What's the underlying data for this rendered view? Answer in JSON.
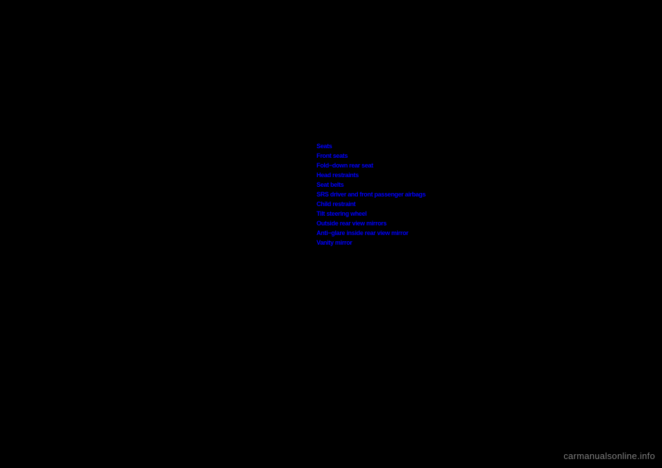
{
  "links": [
    "Seats",
    "Front seats",
    "Fold−down rear seat",
    "Head restraints",
    "Seat belts",
    "SRS driver and front passenger airbags",
    "Child restraint",
    "Tilt steering wheel",
    "Outside rear view mirrors",
    "Anti−glare inside rear view mirror",
    "Vanity mirror"
  ],
  "watermark": "carmanualsonline.info",
  "colors": {
    "background": "#000000",
    "link": "#0000ff",
    "watermark": "#808080"
  }
}
